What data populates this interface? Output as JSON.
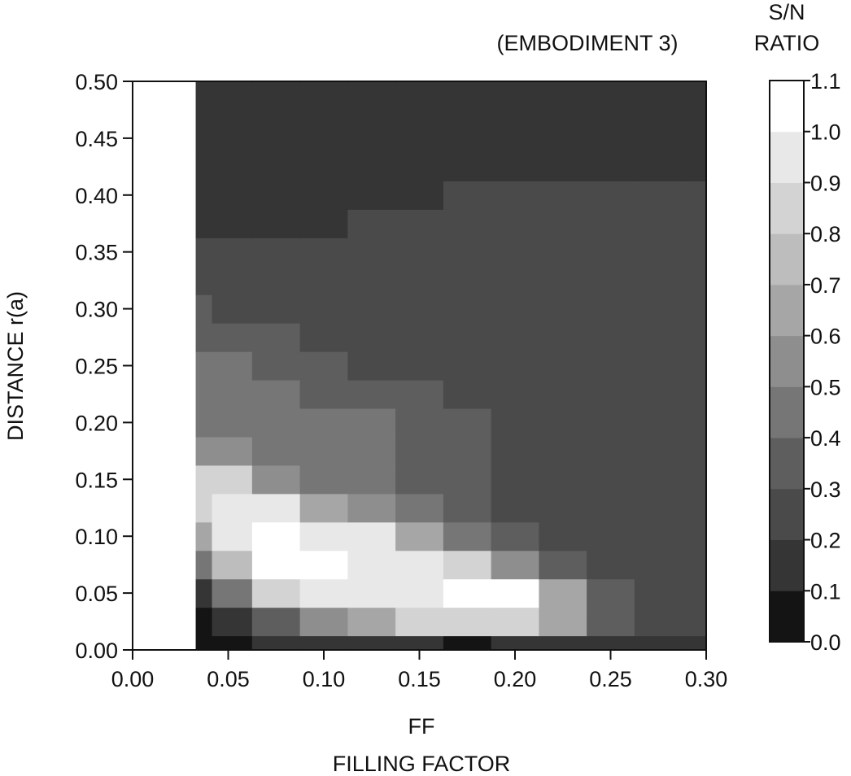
{
  "chart_data": {
    "type": "heatmap",
    "title": "(EMBODIMENT 3)",
    "xlabel": "FF",
    "xlabel_sub": "FILLING FACTOR",
    "ylabel": "DISTANCE r(a)",
    "colorbar_label": [
      "S/N",
      "RATIO"
    ],
    "xlim": [
      0.0,
      0.3
    ],
    "ylim": [
      0.0,
      0.5
    ],
    "xticks": [
      "0.00",
      "0.05",
      "0.10",
      "0.15",
      "0.20",
      "0.25",
      "0.30"
    ],
    "yticks": [
      "0.00",
      "0.05",
      "0.10",
      "0.15",
      "0.20",
      "0.25",
      "0.30",
      "0.35",
      "0.40",
      "0.45",
      "0.50"
    ],
    "colorbar_ticks": [
      "0.0",
      "0.1",
      "0.2",
      "0.3",
      "0.4",
      "0.5",
      "0.6",
      "0.7",
      "0.8",
      "0.9",
      "1.0",
      "1.1"
    ],
    "colorbar_range": [
      0.0,
      1.1
    ],
    "data_x_start": 0.033,
    "grid": false,
    "legend": "right colorbar",
    "x": [
      0.033,
      0.05,
      0.075,
      0.1,
      0.125,
      0.15,
      0.175,
      0.2,
      0.225,
      0.25,
      0.275,
      0.3
    ],
    "y": [
      0.0,
      0.025,
      0.05,
      0.075,
      0.1,
      0.125,
      0.15,
      0.175,
      0.2,
      0.225,
      0.25,
      0.275,
      0.3,
      0.325,
      0.35,
      0.375,
      0.4,
      0.425,
      0.45,
      0.475,
      0.5
    ],
    "z": [
      [
        0.05,
        0.05,
        0.1,
        0.15,
        0.15,
        0.15,
        0.05,
        0.1,
        0.15,
        0.15,
        0.15,
        0.1
      ],
      [
        0.05,
        0.1,
        0.35,
        0.55,
        0.7,
        0.8,
        0.85,
        0.8,
        0.65,
        0.3,
        0.25,
        0.2
      ],
      [
        0.15,
        0.4,
        0.8,
        0.9,
        0.9,
        0.95,
        1.0,
        1.0,
        0.7,
        0.3,
        0.25,
        0.2
      ],
      [
        0.4,
        0.75,
        1.0,
        1.0,
        0.95,
        0.9,
        0.85,
        0.55,
        0.35,
        0.25,
        0.25,
        0.2
      ],
      [
        0.65,
        0.9,
        1.0,
        0.95,
        0.9,
        0.65,
        0.4,
        0.3,
        0.25,
        0.25,
        0.2,
        0.2
      ],
      [
        0.8,
        0.95,
        0.9,
        0.7,
        0.55,
        0.4,
        0.3,
        0.25,
        0.25,
        0.2,
        0.2,
        0.2
      ],
      [
        0.85,
        0.8,
        0.55,
        0.45,
        0.45,
        0.35,
        0.3,
        0.25,
        0.25,
        0.2,
        0.2,
        0.2
      ],
      [
        0.55,
        0.5,
        0.45,
        0.45,
        0.45,
        0.35,
        0.3,
        0.25,
        0.25,
        0.2,
        0.2,
        0.2
      ],
      [
        0.45,
        0.45,
        0.45,
        0.45,
        0.45,
        0.35,
        0.3,
        0.25,
        0.25,
        0.2,
        0.2,
        0.2
      ],
      [
        0.45,
        0.45,
        0.45,
        0.35,
        0.3,
        0.3,
        0.25,
        0.25,
        0.2,
        0.2,
        0.2,
        0.2
      ],
      [
        0.45,
        0.45,
        0.35,
        0.3,
        0.25,
        0.25,
        0.25,
        0.25,
        0.2,
        0.2,
        0.2,
        0.2
      ],
      [
        0.35,
        0.35,
        0.3,
        0.25,
        0.25,
        0.25,
        0.25,
        0.25,
        0.2,
        0.2,
        0.2,
        0.2
      ],
      [
        0.3,
        0.25,
        0.25,
        0.25,
        0.25,
        0.25,
        0.25,
        0.25,
        0.25,
        0.2,
        0.2,
        0.2
      ],
      [
        0.25,
        0.25,
        0.25,
        0.25,
        0.25,
        0.25,
        0.25,
        0.25,
        0.25,
        0.25,
        0.2,
        0.2
      ],
      [
        0.25,
        0.25,
        0.25,
        0.25,
        0.25,
        0.25,
        0.25,
        0.25,
        0.25,
        0.25,
        0.25,
        0.2
      ],
      [
        0.15,
        0.15,
        0.15,
        0.15,
        0.2,
        0.25,
        0.25,
        0.25,
        0.25,
        0.25,
        0.25,
        0.2
      ],
      [
        0.15,
        0.15,
        0.15,
        0.15,
        0.15,
        0.15,
        0.2,
        0.2,
        0.2,
        0.2,
        0.2,
        0.2
      ],
      [
        0.15,
        0.15,
        0.15,
        0.15,
        0.15,
        0.15,
        0.15,
        0.15,
        0.15,
        0.15,
        0.15,
        0.15
      ],
      [
        0.15,
        0.15,
        0.15,
        0.15,
        0.15,
        0.15,
        0.15,
        0.15,
        0.15,
        0.15,
        0.15,
        0.15
      ],
      [
        0.15,
        0.15,
        0.15,
        0.15,
        0.15,
        0.15,
        0.15,
        0.15,
        0.15,
        0.15,
        0.15,
        0.15
      ],
      [
        0.15,
        0.15,
        0.15,
        0.15,
        0.15,
        0.15,
        0.15,
        0.15,
        0.15,
        0.15,
        0.15,
        0.15
      ]
    ]
  }
}
